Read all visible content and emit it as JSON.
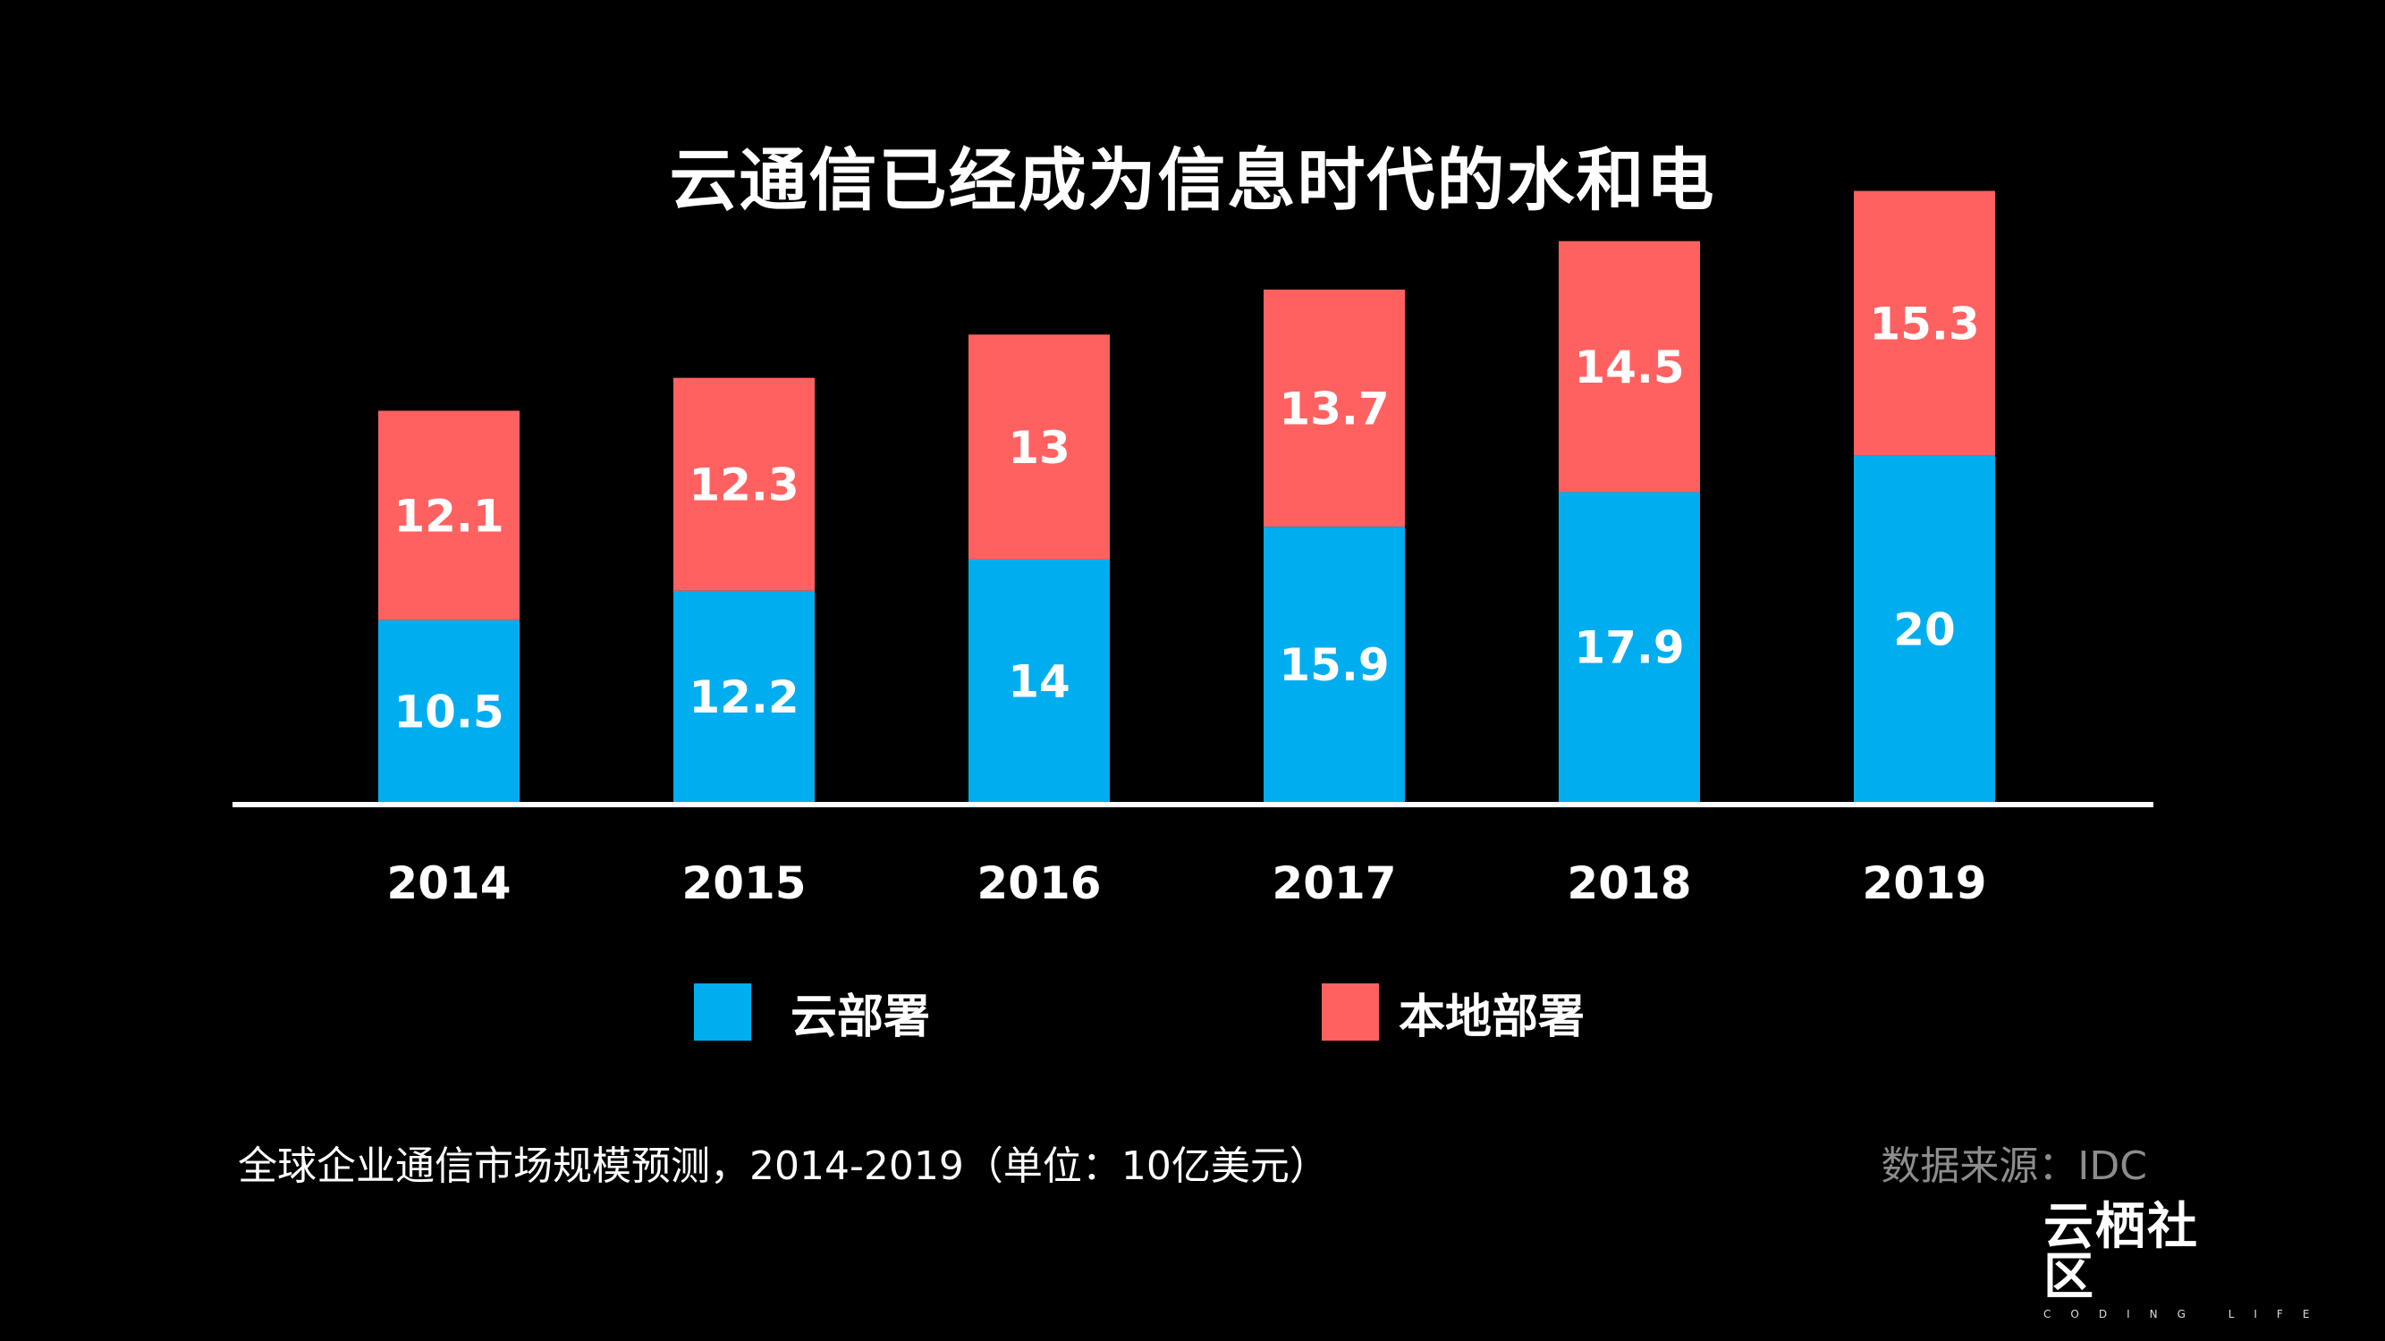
{
  "title": "云通信已经成为信息时代的水和电",
  "caption": "全球企业通信市场规模预测，2014-2019（单位：10亿美元）",
  "source": "数据来源：IDC",
  "logo": {
    "name": "云栖社区",
    "tagline": "CODING LIFE"
  },
  "colors": {
    "cloud": "#00aeef",
    "local": "#ff6161",
    "background": "#000000",
    "axis": "#ffffff"
  },
  "chart_data": {
    "type": "bar",
    "stacked": true,
    "categories": [
      "2014",
      "2015",
      "2016",
      "2017",
      "2018",
      "2019"
    ],
    "series": [
      {
        "name": "云部署",
        "values": [
          10.5,
          12.2,
          14,
          15.9,
          17.9,
          20
        ]
      },
      {
        "name": "本地部署",
        "values": [
          12.1,
          12.3,
          13,
          13.7,
          14.5,
          15.3
        ]
      }
    ],
    "ylim": [
      0,
      36
    ],
    "grid": false,
    "legend": "bottom"
  }
}
